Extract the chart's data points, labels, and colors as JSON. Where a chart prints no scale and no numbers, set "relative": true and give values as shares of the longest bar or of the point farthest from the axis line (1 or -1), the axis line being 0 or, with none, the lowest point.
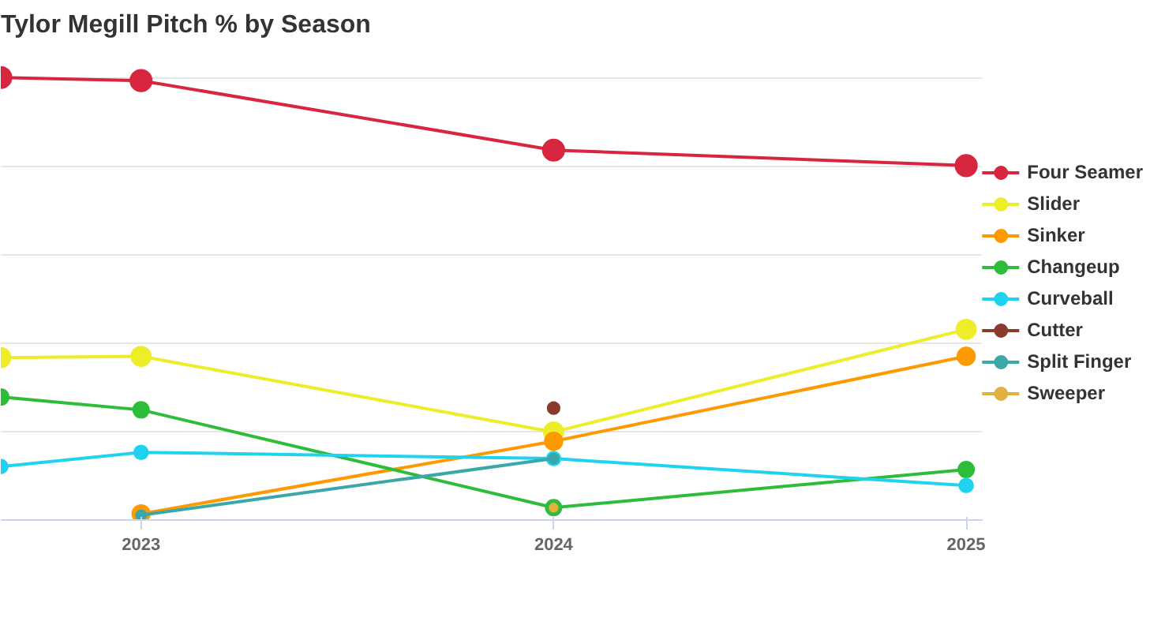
{
  "chart_data": {
    "type": "line",
    "title": "Tylor Megill Pitch % by Season",
    "relative": true,
    "x": [
      2022.66,
      2023,
      2024,
      2025
    ],
    "xlim": [
      2022.66,
      2025.04
    ],
    "xticks": [
      2023,
      2024,
      2025
    ],
    "grid": "y",
    "legend": "right",
    "marker": "circle",
    "line_style": "solid",
    "series": [
      {
        "name": "Four Seamer",
        "color": "#d7263d",
        "values": [
          1.0,
          0.993,
          0.836,
          0.801
        ]
      },
      {
        "name": "Slider",
        "color": "#eded2a",
        "values": [
          0.367,
          0.37,
          0.199,
          0.431
        ]
      },
      {
        "name": "Sinker",
        "color": "#ff9900",
        "values": [
          null,
          0.014,
          0.178,
          0.37
        ]
      },
      {
        "name": "Changeup",
        "color": "#2ebd3a",
        "values": [
          0.278,
          0.249,
          0.028,
          0.114
        ]
      },
      {
        "name": "Curveball",
        "color": "#1fd3f0",
        "values": [
          0.121,
          0.153,
          0.139,
          0.078
        ]
      },
      {
        "name": "Cutter",
        "color": "#8b3a2e",
        "values": [
          null,
          null,
          0.253,
          null
        ]
      },
      {
        "name": "Split Finger",
        "color": "#3aa8a8",
        "values": [
          null,
          0.011,
          0.139,
          null
        ]
      },
      {
        "name": "Sweeper",
        "color": "#e0b040",
        "values": [
          null,
          null,
          0.028,
          null
        ]
      }
    ]
  }
}
